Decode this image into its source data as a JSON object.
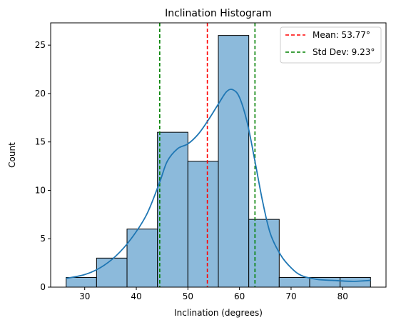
{
  "chart_data": {
    "type": "bar",
    "title": "Inclination Histogram",
    "xlabel": "Inclination (degrees)",
    "ylabel": "Count",
    "xlim": [
      23.4,
      88.4
    ],
    "ylim": [
      0,
      27.3
    ],
    "xticks": [
      30,
      40,
      50,
      60,
      70,
      80
    ],
    "yticks": [
      0,
      5,
      10,
      15,
      20,
      25
    ],
    "bins": [
      {
        "start": 26.4,
        "end": 32.3,
        "count": 1
      },
      {
        "start": 32.3,
        "end": 38.2,
        "count": 3
      },
      {
        "start": 38.2,
        "end": 44.1,
        "count": 6
      },
      {
        "start": 44.1,
        "end": 50.0,
        "count": 16
      },
      {
        "start": 50.0,
        "end": 55.9,
        "count": 13
      },
      {
        "start": 55.9,
        "end": 61.8,
        "count": 26
      },
      {
        "start": 61.8,
        "end": 67.7,
        "count": 7
      },
      {
        "start": 67.7,
        "end": 73.6,
        "count": 1
      },
      {
        "start": 73.6,
        "end": 79.5,
        "count": 1
      },
      {
        "start": 79.5,
        "end": 85.4,
        "count": 1
      }
    ],
    "kde": [
      [
        26.4,
        0.9
      ],
      [
        30,
        1.3
      ],
      [
        33,
        2.0
      ],
      [
        36,
        3.2
      ],
      [
        39,
        5.0
      ],
      [
        42,
        7.5
      ],
      [
        44.5,
        10.8
      ],
      [
        46,
        13.0
      ],
      [
        48,
        14.3
      ],
      [
        50,
        14.8
      ],
      [
        52,
        15.8
      ],
      [
        54,
        17.3
      ],
      [
        56,
        19.0
      ],
      [
        57.5,
        20.2
      ],
      [
        58.7,
        20.4
      ],
      [
        60,
        19.6
      ],
      [
        61.5,
        17.0
      ],
      [
        63,
        13.0
      ],
      [
        64.5,
        8.8
      ],
      [
        66,
        5.5
      ],
      [
        68,
        3.3
      ],
      [
        70,
        2.0
      ],
      [
        72,
        1.2
      ],
      [
        75,
        0.8
      ],
      [
        78,
        0.7
      ],
      [
        82,
        0.6
      ],
      [
        85.4,
        0.7
      ]
    ],
    "mean_line": {
      "x": 53.77,
      "label": "Mean: 53.77°",
      "color": "#ff0000"
    },
    "std_lines": {
      "x": [
        44.54,
        63.0
      ],
      "label": "Std Dev: 9.23°",
      "color": "#008000"
    },
    "bar_color": "#8cbadb",
    "kde_color": "#1f77b4",
    "legend_position": "top-right",
    "grid": false
  }
}
